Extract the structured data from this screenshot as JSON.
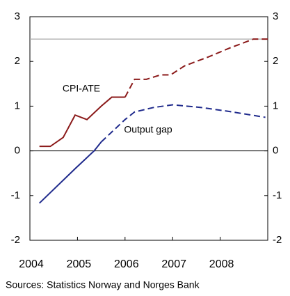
{
  "chart_data": {
    "type": "line",
    "xlim": [
      2004,
      2009
    ],
    "xticks": [
      2004,
      2005,
      2006,
      2007,
      2008
    ],
    "ylim": [
      -2,
      3
    ],
    "yticks": [
      -2,
      -1,
      0,
      1,
      2,
      3
    ],
    "y2lim": [
      -2,
      3
    ],
    "y2ticks": [
      -2,
      -1,
      0,
      1,
      2,
      3
    ],
    "reference_line": 2.5,
    "series": [
      {
        "name": "CPI-ATE",
        "color": "#8b1a1a",
        "dash_from": 2006,
        "x": [
          2004.2,
          2004.43,
          2004.7,
          2004.95,
          2005.2,
          2005.5,
          2005.72,
          2006,
          2006.2,
          2006.45,
          2006.75,
          2006.96,
          2007.25,
          2007.75,
          2008.2,
          2008.7,
          2009
        ],
        "values": [
          0.1,
          0.1,
          0.3,
          0.8,
          0.7,
          1.0,
          1.2,
          1.2,
          1.6,
          1.6,
          1.7,
          1.7,
          1.9,
          2.1,
          2.3,
          2.5,
          2.5
        ]
      },
      {
        "name": "Output gap",
        "color": "#1f2a8c",
        "dash_from": 2005.5,
        "x": [
          2004.2,
          2004.95,
          2005.35,
          2005.5,
          2006,
          2006.2,
          2006.6,
          2007,
          2007.6,
          2008.2,
          2008.95
        ],
        "values": [
          -1.17,
          -0.4,
          0,
          0.2,
          0.7,
          0.87,
          0.97,
          1.03,
          0.97,
          0.88,
          0.75
        ]
      }
    ],
    "source": "Sources: Statistics Norway and Norges Bank"
  }
}
